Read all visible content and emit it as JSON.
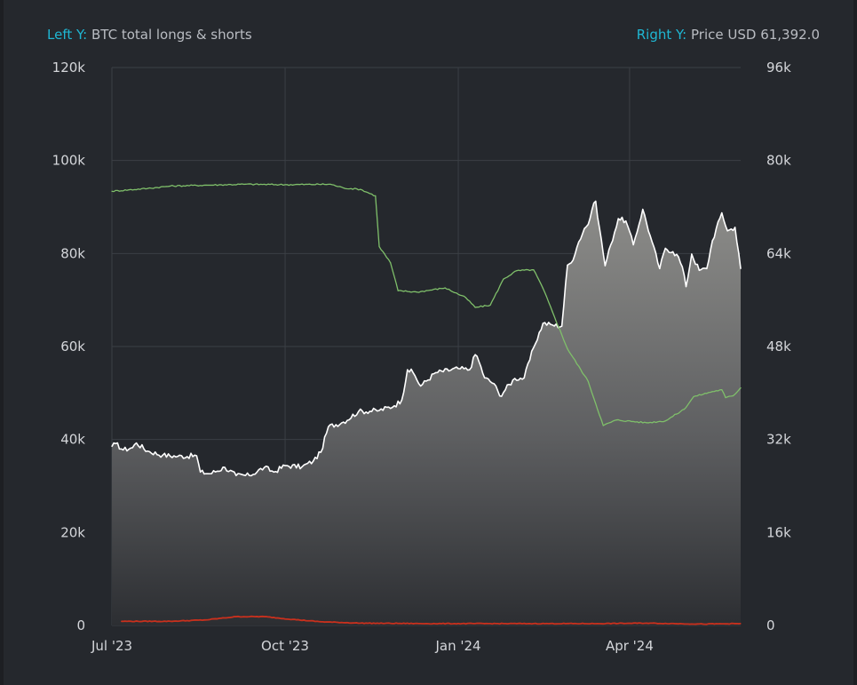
{
  "header": {
    "left_key": "Left Y:",
    "left_value": "BTC total longs & shorts",
    "right_key": "Right Y:",
    "right_value": "Price USD 61,392.0"
  },
  "colors": {
    "background": "#25282d",
    "grid": "#3b3f45",
    "price_line": "#ffffff",
    "longs_shorts_line": "#7fbf6a",
    "bottom_line": "#c9301d",
    "axis_text": "#d4d6da",
    "header_key": "#1fb7d3"
  },
  "chart_data": {
    "type": "line",
    "x_ticks": [
      "Jul '23",
      "Oct '23",
      "Jan '24",
      "Apr '24"
    ],
    "y_left_ticks": [
      "0",
      "20k",
      "40k",
      "60k",
      "80k",
      "100k",
      "120k"
    ],
    "y_right_ticks": [
      "0",
      "16k",
      "32k",
      "48k",
      "64k",
      "80k",
      "96k"
    ],
    "y_left_range": [
      0,
      120000
    ],
    "y_right_range": [
      0,
      96000
    ],
    "x_range": [
      "2023-07-01",
      "2024-05-30"
    ],
    "grid": true,
    "series": [
      {
        "axis": "right",
        "style": "area",
        "points": [
          [
            "2023-07-01",
            30800
          ],
          [
            "2023-07-03",
            31300
          ],
          [
            "2023-07-07",
            30200
          ],
          [
            "2023-07-12",
            30600
          ],
          [
            "2023-07-14",
            31400
          ],
          [
            "2023-07-20",
            30000
          ],
          [
            "2023-07-28",
            29300
          ],
          [
            "2023-08-05",
            29100
          ],
          [
            "2023-08-15",
            29200
          ],
          [
            "2023-08-17",
            26400
          ],
          [
            "2023-08-22",
            26100
          ],
          [
            "2023-08-30",
            27200
          ],
          [
            "2023-09-05",
            25800
          ],
          [
            "2023-09-12",
            25800
          ],
          [
            "2023-09-20",
            27200
          ],
          [
            "2023-09-25",
            26400
          ],
          [
            "2023-10-01",
            27500
          ],
          [
            "2023-10-10",
            27300
          ],
          [
            "2023-10-16",
            28300
          ],
          [
            "2023-10-20",
            29800
          ],
          [
            "2023-10-24",
            34200
          ],
          [
            "2023-11-01",
            35000
          ],
          [
            "2023-11-09",
            36800
          ],
          [
            "2023-11-20",
            37000
          ],
          [
            "2023-11-28",
            37800
          ],
          [
            "2023-12-02",
            38800
          ],
          [
            "2023-12-05",
            44000
          ],
          [
            "2023-12-08",
            43500
          ],
          [
            "2023-12-12",
            41200
          ],
          [
            "2023-12-20",
            43500
          ],
          [
            "2024-01-01",
            44200
          ],
          [
            "2024-01-07",
            44000
          ],
          [
            "2024-01-10",
            46600
          ],
          [
            "2024-01-11",
            46300
          ],
          [
            "2024-01-15",
            42600
          ],
          [
            "2024-01-20",
            41600
          ],
          [
            "2024-01-23",
            39500
          ],
          [
            "2024-01-31",
            42500
          ],
          [
            "2024-02-05",
            42600
          ],
          [
            "2024-02-10",
            47800
          ],
          [
            "2024-02-15",
            52000
          ],
          [
            "2024-02-20",
            51700
          ],
          [
            "2024-02-25",
            51500
          ],
          [
            "2024-02-28",
            62000
          ],
          [
            "2024-03-01",
            62400
          ],
          [
            "2024-03-05",
            66000
          ],
          [
            "2024-03-08",
            68300
          ],
          [
            "2024-03-10",
            69000
          ],
          [
            "2024-03-12",
            71500
          ],
          [
            "2024-03-14",
            73000
          ],
          [
            "2024-03-16",
            68400
          ],
          [
            "2024-03-19",
            61900
          ],
          [
            "2024-03-22",
            65500
          ],
          [
            "2024-03-26",
            70000
          ],
          [
            "2024-03-30",
            69600
          ],
          [
            "2024-04-03",
            65500
          ],
          [
            "2024-04-08",
            71600
          ],
          [
            "2024-04-12",
            67000
          ],
          [
            "2024-04-17",
            61400
          ],
          [
            "2024-04-20",
            64900
          ],
          [
            "2024-04-24",
            64300
          ],
          [
            "2024-04-27",
            63400
          ],
          [
            "2024-04-30",
            60300
          ],
          [
            "2024-05-01",
            58300
          ],
          [
            "2024-05-04",
            63900
          ],
          [
            "2024-05-08",
            61100
          ],
          [
            "2024-05-12",
            61400
          ],
          [
            "2024-05-15",
            66200
          ],
          [
            "2024-05-20",
            71000
          ],
          [
            "2024-05-23",
            67900
          ],
          [
            "2024-05-27",
            68500
          ],
          [
            "2024-05-30",
            61400
          ]
        ]
      },
      {
        "axis": "left",
        "style": "line",
        "points": [
          [
            "2023-07-01",
            93400
          ],
          [
            "2023-07-20",
            94000
          ],
          [
            "2023-08-01",
            94500
          ],
          [
            "2023-08-20",
            94700
          ],
          [
            "2023-09-10",
            94900
          ],
          [
            "2023-10-01",
            94800
          ],
          [
            "2023-10-25",
            94900
          ],
          [
            "2023-11-01",
            94100
          ],
          [
            "2023-11-10",
            93800
          ],
          [
            "2023-11-18",
            92400
          ],
          [
            "2023-11-20",
            81500
          ],
          [
            "2023-11-26",
            78000
          ],
          [
            "2023-11-30",
            72000
          ],
          [
            "2023-12-10",
            71700
          ],
          [
            "2023-12-25",
            72600
          ],
          [
            "2024-01-05",
            70500
          ],
          [
            "2024-01-10",
            68400
          ],
          [
            "2024-01-18",
            68900
          ],
          [
            "2024-01-25",
            74500
          ],
          [
            "2024-02-01",
            76300
          ],
          [
            "2024-02-10",
            76500
          ],
          [
            "2024-02-15",
            72500
          ],
          [
            "2024-02-20",
            67500
          ],
          [
            "2024-02-28",
            59500
          ],
          [
            "2024-03-10",
            52500
          ],
          [
            "2024-03-18",
            43000
          ],
          [
            "2024-03-25",
            44200
          ],
          [
            "2024-04-10",
            43600
          ],
          [
            "2024-04-20",
            44000
          ],
          [
            "2024-04-30",
            46500
          ],
          [
            "2024-05-05",
            49200
          ],
          [
            "2024-05-15",
            50300
          ],
          [
            "2024-05-20",
            50700
          ],
          [
            "2024-05-22",
            49000
          ],
          [
            "2024-05-26",
            49400
          ],
          [
            "2024-05-30",
            51100
          ]
        ]
      },
      {
        "axis": "left",
        "style": "line",
        "points": [
          [
            "2023-07-06",
            900
          ],
          [
            "2023-08-01",
            900
          ],
          [
            "2023-08-20",
            1200
          ],
          [
            "2023-09-05",
            1900
          ],
          [
            "2023-09-20",
            1900
          ],
          [
            "2023-10-05",
            1300
          ],
          [
            "2023-10-20",
            800
          ],
          [
            "2023-11-10",
            500
          ],
          [
            "2023-12-15",
            400
          ],
          [
            "2024-02-10",
            400
          ],
          [
            "2024-03-15",
            400
          ],
          [
            "2024-04-10",
            500
          ],
          [
            "2024-05-10",
            300
          ],
          [
            "2024-05-30",
            400
          ]
        ]
      }
    ]
  }
}
